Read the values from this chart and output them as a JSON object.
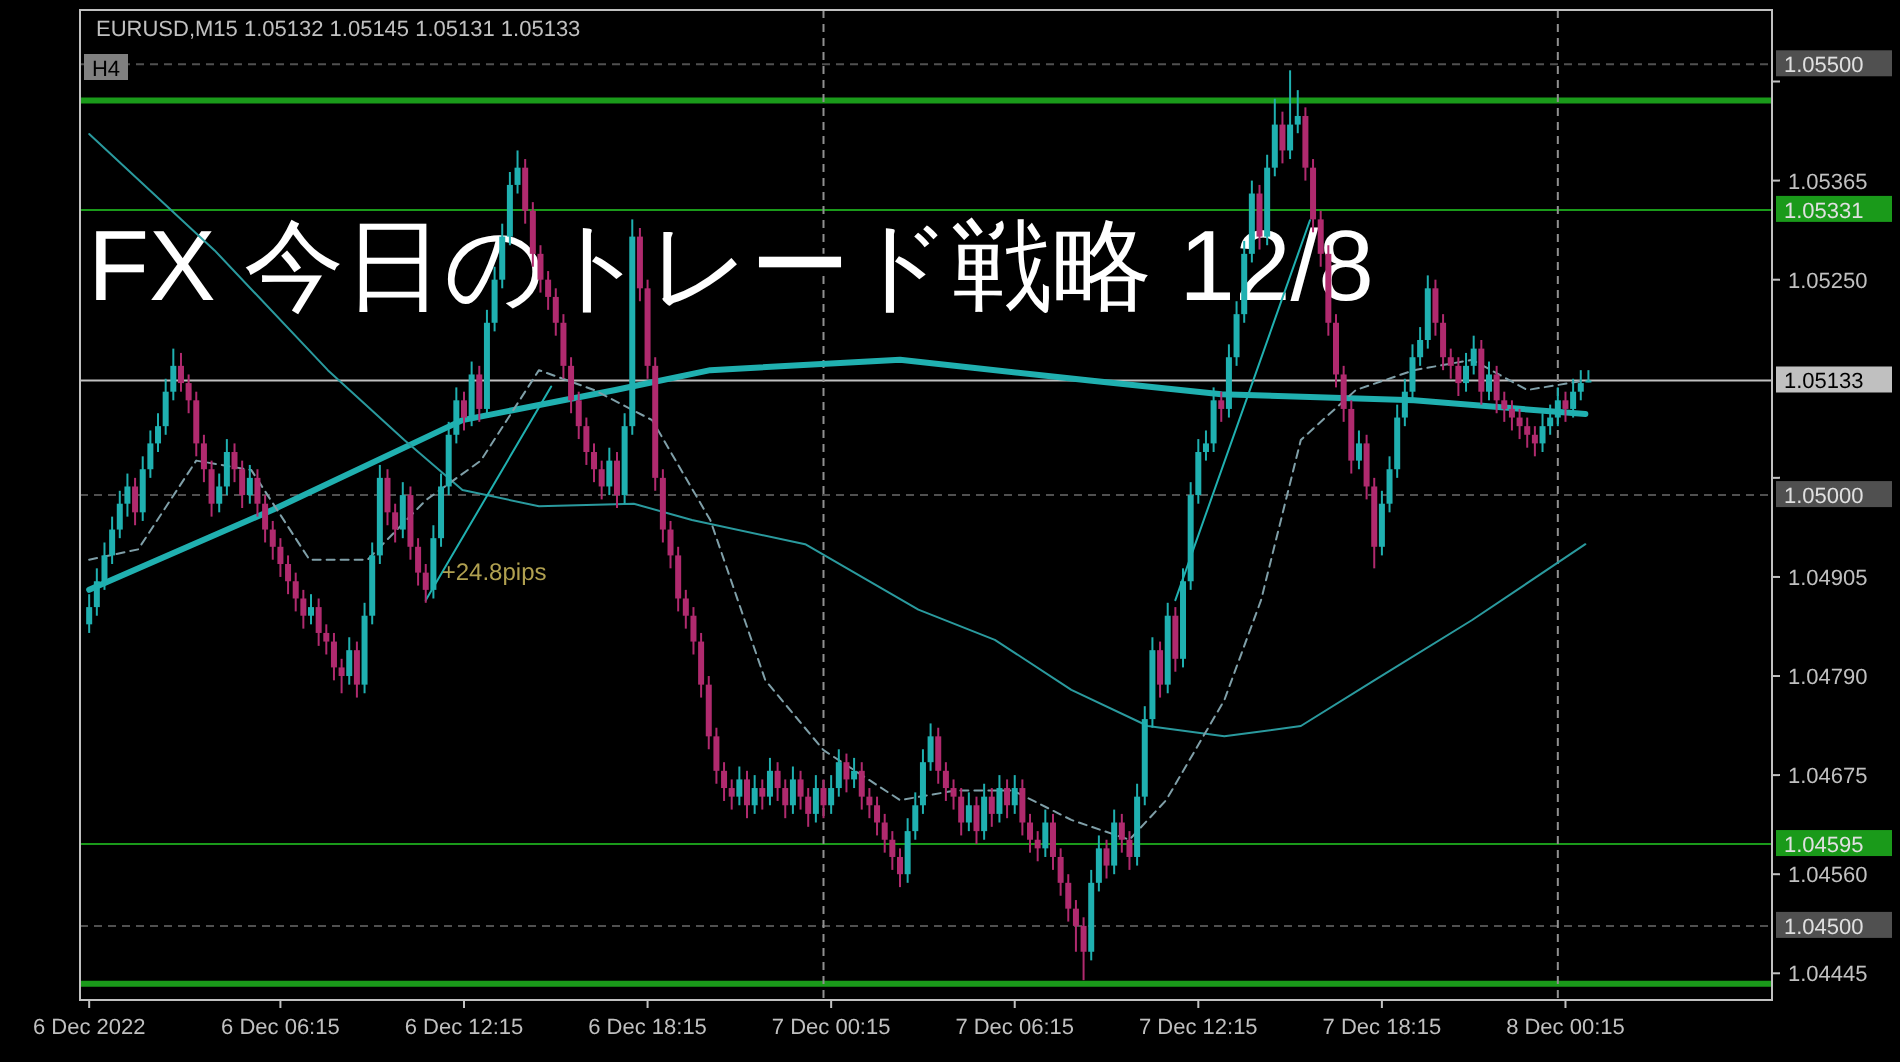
{
  "chart_data": {
    "type": "candlestick",
    "title": "FX 今日のトレード戦略 12/8",
    "subtitle": "EURUSD,M15 1.05132 1.05145 1.05131 1.05133",
    "annotations": [
      "H4",
      "+24.8pips"
    ],
    "xlim": [
      "2022-12-05T23:42",
      "2022-12-08T07:00"
    ],
    "ylim": [
      1.04414,
      1.05563
    ],
    "xticks": [
      {
        "value": "2022-12-06T00:00",
        "label": "6 Dec 2022"
      },
      {
        "value": "2022-12-06T06:15",
        "label": "6 Dec 06:15"
      },
      {
        "value": "2022-12-06T12:15",
        "label": "6 Dec 12:15"
      },
      {
        "value": "2022-12-06T18:15",
        "label": "6 Dec 18:15"
      },
      {
        "value": "2022-12-07T00:15",
        "label": "7 Dec 00:15"
      },
      {
        "value": "2022-12-07T06:15",
        "label": "7 Dec 06:15"
      },
      {
        "value": "2022-12-07T12:15",
        "label": "7 Dec 12:15"
      },
      {
        "value": "2022-12-07T18:15",
        "label": "7 Dec 18:15"
      },
      {
        "value": "2022-12-08T00:15",
        "label": "8 Dec 00:15"
      }
    ],
    "yticks": [
      {
        "value": 1.0548,
        "label": null
      },
      {
        "value": 1.05365,
        "label": "1.05365"
      },
      {
        "value": 1.0525,
        "label": "1.05250"
      },
      {
        "value": 1.0502,
        "label": null
      },
      {
        "value": 1.04905,
        "label": "1.04905"
      },
      {
        "value": 1.0479,
        "label": "1.04790"
      },
      {
        "value": 1.04675,
        "label": "1.04675"
      },
      {
        "value": 1.0456,
        "label": "1.04560"
      },
      {
        "value": 1.04445,
        "label": "1.04445"
      }
    ],
    "grid": false,
    "ref_lines": [
      {
        "axis": "y",
        "value": 1.055,
        "label": "1.05500",
        "color": "#505050",
        "line_style": "dashed"
      },
      {
        "axis": "y",
        "value": 1.05458,
        "label": null,
        "color": "#1a9a1a",
        "line_style": "solid"
      },
      {
        "axis": "y",
        "value": 1.05331,
        "label": "1.05331",
        "color": "#1a9a1a",
        "line_style": "solid"
      },
      {
        "axis": "y",
        "value": 1.05133,
        "label": "1.05133",
        "color": "#c0c0c0",
        "line_style": "solid"
      },
      {
        "axis": "y",
        "value": 1.05,
        "label": "1.05000",
        "color": "#505050",
        "line_style": "dashed"
      },
      {
        "axis": "y",
        "value": 1.04595,
        "label": "1.04595",
        "color": "#1a9a1a",
        "line_style": "solid"
      },
      {
        "axis": "y",
        "value": 1.045,
        "label": "1.04500",
        "color": "#505050",
        "line_style": "dashed"
      },
      {
        "axis": "y",
        "value": 1.04433,
        "label": null,
        "color": "#1a9a1a",
        "line_style": "solid"
      },
      {
        "axis": "x",
        "value": "2022-12-07T00:00",
        "label": null,
        "color": "#909090",
        "line_style": "dashed"
      },
      {
        "axis": "x",
        "value": "2022-12-08T00:00",
        "label": null,
        "color": "#909090",
        "line_style": "dashed"
      }
    ],
    "series": [
      {
        "type": "line",
        "color": "#20b0b0",
        "x": [
          "2022-12-06T00:00",
          "2022-12-06T06:00",
          "2022-12-06T12:12",
          "2022-12-06T17:12",
          "2022-12-06T20:18",
          "2022-12-07T02:30",
          "2022-12-07T08:42",
          "2022-12-07T13:00",
          "2022-12-07T19:18",
          "2022-12-08T00:54"
        ],
        "values": [
          1.0489,
          1.04983,
          1.05087,
          1.05122,
          1.05145,
          1.05157,
          1.05133,
          1.05117,
          1.0511,
          1.05094
        ]
      },
      {
        "type": "line",
        "color": "#2a9a9e",
        "x": [
          "2022-12-06T00:00",
          "2022-12-06T04:06",
          "2022-12-06T07:48",
          "2022-12-06T10:18",
          "2022-12-06T12:12",
          "2022-12-06T14:42",
          "2022-12-06T17:48",
          "2022-12-06T19:42",
          "2022-12-06T23:24",
          "2022-12-07T03:06",
          "2022-12-07T05:36",
          "2022-12-07T08:06",
          "2022-12-07T10:36",
          "2022-12-07T13:06",
          "2022-12-07T15:36",
          "2022-12-07T18:00",
          "2022-12-07T21:12",
          "2022-12-08T00:54"
        ],
        "values": [
          1.05419,
          1.05284,
          1.05145,
          1.05064,
          1.05006,
          1.04987,
          1.0499,
          1.04971,
          1.04943,
          1.04867,
          1.04832,
          1.04774,
          1.04732,
          1.0472,
          1.04732,
          1.04785,
          1.04855,
          1.04943
        ]
      },
      {
        "type": "line",
        "color": "#7f9fa8",
        "line_style": "dashed",
        "x": [
          "2022-12-06T00:00",
          "2022-12-06T01:36",
          "2022-12-06T03:30",
          "2022-12-06T05:18",
          "2022-12-06T07:12",
          "2022-12-06T09:06",
          "2022-12-06T11:00",
          "2022-12-06T12:48",
          "2022-12-06T14:42",
          "2022-12-06T16:30",
          "2022-12-06T18:24",
          "2022-12-06T20:18",
          "2022-12-06T22:06",
          "2022-12-07T00:00",
          "2022-12-07T02:30",
          "2022-12-07T04:18",
          "2022-12-07T06:12",
          "2022-12-07T08:06",
          "2022-12-07T10:00",
          "2022-12-07T11:12",
          "2022-12-07T13:06",
          "2022-12-07T14:18",
          "2022-12-07T15:36",
          "2022-12-07T17:24",
          "2022-12-07T19:18",
          "2022-12-07T21:12",
          "2022-12-07T23:00",
          "2022-12-08T00:54"
        ],
        "values": [
          1.04925,
          1.04937,
          1.0504,
          1.05029,
          1.04925,
          1.04925,
          1.04994,
          1.0504,
          1.05145,
          1.05122,
          1.05087,
          1.04971,
          1.04785,
          1.04704,
          1.04646,
          1.04657,
          1.04657,
          1.04623,
          1.046,
          1.04646,
          1.04762,
          1.04878,
          1.05064,
          1.05122,
          1.05145,
          1.05157,
          1.05122,
          1.05133
        ]
      },
      {
        "type": "line",
        "color": "#20b0b0",
        "x": [
          "2022-12-06T11:00",
          "2022-12-06T15:06"
        ],
        "values": [
          1.04878,
          1.05126
        ]
      },
      {
        "type": "line",
        "color": "#20b0b0",
        "x": [
          "2022-12-07T11:30",
          "2022-12-07T15:54"
        ],
        "values": [
          1.04878,
          1.05319
        ]
      }
    ],
    "x": [
      "2022-12-06T00:00",
      "2022-12-06T00:15",
      "2022-12-06T00:30",
      "2022-12-06T00:45",
      "2022-12-06T01:00",
      "2022-12-06T01:15",
      "2022-12-06T01:30",
      "2022-12-06T01:45",
      "2022-12-06T02:00",
      "2022-12-06T02:15",
      "2022-12-06T02:30",
      "2022-12-06T02:45",
      "2022-12-06T03:00",
      "2022-12-06T03:15",
      "2022-12-06T03:30",
      "2022-12-06T03:45",
      "2022-12-06T04:00",
      "2022-12-06T04:15",
      "2022-12-06T04:30",
      "2022-12-06T04:45",
      "2022-12-06T05:00",
      "2022-12-06T05:15",
      "2022-12-06T05:30",
      "2022-12-06T05:45",
      "2022-12-06T06:00",
      "2022-12-06T06:15",
      "2022-12-06T06:30",
      "2022-12-06T06:45",
      "2022-12-06T07:00",
      "2022-12-06T07:15",
      "2022-12-06T07:30",
      "2022-12-06T07:45",
      "2022-12-06T08:00",
      "2022-12-06T08:15",
      "2022-12-06T08:30",
      "2022-12-06T08:45",
      "2022-12-06T09:00",
      "2022-12-06T09:15",
      "2022-12-06T09:30",
      "2022-12-06T09:45",
      "2022-12-06T10:00",
      "2022-12-06T10:15",
      "2022-12-06T10:30",
      "2022-12-06T10:45",
      "2022-12-06T11:00",
      "2022-12-06T11:15",
      "2022-12-06T11:30",
      "2022-12-06T11:45",
      "2022-12-06T12:00",
      "2022-12-06T12:15",
      "2022-12-06T12:30",
      "2022-12-06T12:45",
      "2022-12-06T13:00",
      "2022-12-06T13:15",
      "2022-12-06T13:30",
      "2022-12-06T13:45",
      "2022-12-06T14:00",
      "2022-12-06T14:15",
      "2022-12-06T14:30",
      "2022-12-06T14:45",
      "2022-12-06T15:00",
      "2022-12-06T15:15",
      "2022-12-06T15:30",
      "2022-12-06T15:45",
      "2022-12-06T16:00",
      "2022-12-06T16:15",
      "2022-12-06T16:30",
      "2022-12-06T16:45",
      "2022-12-06T17:00",
      "2022-12-06T17:15",
      "2022-12-06T17:30",
      "2022-12-06T17:45",
      "2022-12-06T18:00",
      "2022-12-06T18:15",
      "2022-12-06T18:30",
      "2022-12-06T18:45",
      "2022-12-06T19:00",
      "2022-12-06T19:15",
      "2022-12-06T19:30",
      "2022-12-06T19:45",
      "2022-12-06T20:00",
      "2022-12-06T20:15",
      "2022-12-06T20:30",
      "2022-12-06T20:45",
      "2022-12-06T21:00",
      "2022-12-06T21:15",
      "2022-12-06T21:30",
      "2022-12-06T21:45",
      "2022-12-06T22:00",
      "2022-12-06T22:15",
      "2022-12-06T22:30",
      "2022-12-06T22:45",
      "2022-12-06T23:00",
      "2022-12-06T23:15",
      "2022-12-06T23:30",
      "2022-12-06T23:45",
      "2022-12-07T00:00",
      "2022-12-07T00:15",
      "2022-12-07T00:30",
      "2022-12-07T00:45",
      "2022-12-07T01:00",
      "2022-12-07T01:15",
      "2022-12-07T01:30",
      "2022-12-07T01:45",
      "2022-12-07T02:00",
      "2022-12-07T02:15",
      "2022-12-07T02:30",
      "2022-12-07T02:45",
      "2022-12-07T03:00",
      "2022-12-07T03:15",
      "2022-12-07T03:30",
      "2022-12-07T03:45",
      "2022-12-07T04:00",
      "2022-12-07T04:15",
      "2022-12-07T04:30",
      "2022-12-07T04:45",
      "2022-12-07T05:00",
      "2022-12-07T05:15",
      "2022-12-07T05:30",
      "2022-12-07T05:45",
      "2022-12-07T06:00",
      "2022-12-07T06:15",
      "2022-12-07T06:30",
      "2022-12-07T06:45",
      "2022-12-07T07:00",
      "2022-12-07T07:15",
      "2022-12-07T07:30",
      "2022-12-07T07:45",
      "2022-12-07T08:00",
      "2022-12-07T08:15",
      "2022-12-07T08:30",
      "2022-12-07T08:45",
      "2022-12-07T09:00",
      "2022-12-07T09:15",
      "2022-12-07T09:30",
      "2022-12-07T09:45",
      "2022-12-07T10:00",
      "2022-12-07T10:15",
      "2022-12-07T10:30",
      "2022-12-07T10:45",
      "2022-12-07T11:00",
      "2022-12-07T11:15",
      "2022-12-07T11:30",
      "2022-12-07T11:45",
      "2022-12-07T12:00",
      "2022-12-07T12:15",
      "2022-12-07T12:30",
      "2022-12-07T12:45",
      "2022-12-07T13:00",
      "2022-12-07T13:15",
      "2022-12-07T13:30",
      "2022-12-07T13:45",
      "2022-12-07T14:00",
      "2022-12-07T14:15",
      "2022-12-07T14:30",
      "2022-12-07T14:45",
      "2022-12-07T15:00",
      "2022-12-07T15:15",
      "2022-12-07T15:30",
      "2022-12-07T15:45",
      "2022-12-07T16:00",
      "2022-12-07T16:15",
      "2022-12-07T16:30",
      "2022-12-07T16:45",
      "2022-12-07T17:00",
      "2022-12-07T17:15",
      "2022-12-07T17:30",
      "2022-12-07T17:45",
      "2022-12-07T18:00",
      "2022-12-07T18:15",
      "2022-12-07T18:30",
      "2022-12-07T18:45",
      "2022-12-07T19:00",
      "2022-12-07T19:15",
      "2022-12-07T19:30",
      "2022-12-07T19:45",
      "2022-12-07T20:00",
      "2022-12-07T20:15",
      "2022-12-07T20:30",
      "2022-12-07T20:45",
      "2022-12-07T21:00",
      "2022-12-07T21:15",
      "2022-12-07T21:30",
      "2022-12-07T21:45",
      "2022-12-07T22:00",
      "2022-12-07T22:15",
      "2022-12-07T22:30",
      "2022-12-07T22:45",
      "2022-12-07T23:00",
      "2022-12-07T23:15",
      "2022-12-07T23:30",
      "2022-12-07T23:45",
      "2022-12-08T00:00",
      "2022-12-08T00:15",
      "2022-12-08T00:30",
      "2022-12-08T00:45",
      "2022-12-08T01:00"
    ],
    "ohlc": [
      [
        1.0485,
        1.04885,
        1.0484,
        1.0487
      ],
      [
        1.0487,
        1.04915,
        1.0486,
        1.049
      ],
      [
        1.049,
        1.04945,
        1.0489,
        1.0493
      ],
      [
        1.0493,
        1.04975,
        1.0492,
        1.0496
      ],
      [
        1.0496,
        1.05005,
        1.0495,
        1.0499
      ],
      [
        1.0499,
        1.05025,
        1.04975,
        1.0501
      ],
      [
        1.0501,
        1.0502,
        1.04965,
        1.0498
      ],
      [
        1.0498,
        1.05045,
        1.0497,
        1.0503
      ],
      [
        1.0503,
        1.05075,
        1.0502,
        1.0506
      ],
      [
        1.0506,
        1.05095,
        1.0505,
        1.0508
      ],
      [
        1.0508,
        1.05135,
        1.0507,
        1.0512
      ],
      [
        1.0512,
        1.0517,
        1.0511,
        1.0515
      ],
      [
        1.0515,
        1.05165,
        1.0512,
        1.0513
      ],
      [
        1.0513,
        1.0514,
        1.05095,
        1.0511
      ],
      [
        1.0511,
        1.0512,
        1.05045,
        1.0506
      ],
      [
        1.0506,
        1.0507,
        1.05015,
        1.0503
      ],
      [
        1.0503,
        1.0504,
        1.04975,
        1.0499
      ],
      [
        1.0499,
        1.05025,
        1.0498,
        1.0501
      ],
      [
        1.0501,
        1.05065,
        1.05,
        1.0505
      ],
      [
        1.0505,
        1.0506,
        1.05015,
        1.0503
      ],
      [
        1.0503,
        1.0504,
        1.04985,
        1.05
      ],
      [
        1.05,
        1.05035,
        1.0499,
        1.0502
      ],
      [
        1.0502,
        1.0503,
        1.04975,
        1.0499
      ],
      [
        1.0499,
        1.05,
        1.04945,
        1.0496
      ],
      [
        1.0496,
        1.0497,
        1.04925,
        1.0494
      ],
      [
        1.0494,
        1.0495,
        1.04905,
        1.0492
      ],
      [
        1.0492,
        1.0493,
        1.04885,
        1.049
      ],
      [
        1.049,
        1.0491,
        1.04865,
        1.0488
      ],
      [
        1.0488,
        1.0489,
        1.04845,
        1.0486
      ],
      [
        1.0486,
        1.04885,
        1.0485,
        1.0487
      ],
      [
        1.0487,
        1.0488,
        1.04825,
        1.0484
      ],
      [
        1.0484,
        1.0485,
        1.04815,
        1.0483
      ],
      [
        1.0483,
        1.0484,
        1.04785,
        1.048
      ],
      [
        1.048,
        1.0481,
        1.0477,
        1.0479
      ],
      [
        1.0479,
        1.04835,
        1.0478,
        1.0482
      ],
      [
        1.0482,
        1.0483,
        1.04765,
        1.0478
      ],
      [
        1.0478,
        1.04875,
        1.0477,
        1.0486
      ],
      [
        1.0486,
        1.04945,
        1.0485,
        1.0493
      ],
      [
        1.0493,
        1.05035,
        1.0492,
        1.0502
      ],
      [
        1.0502,
        1.0503,
        1.04965,
        1.0498
      ],
      [
        1.0498,
        1.0499,
        1.04945,
        1.0496
      ],
      [
        1.0496,
        1.05015,
        1.0495,
        1.05
      ],
      [
        1.05,
        1.0501,
        1.04925,
        1.0494
      ],
      [
        1.0494,
        1.0495,
        1.04895,
        1.0491
      ],
      [
        1.0491,
        1.0492,
        1.04875,
        1.0489
      ],
      [
        1.0489,
        1.04965,
        1.0488,
        1.0495
      ],
      [
        1.0495,
        1.05025,
        1.0494,
        1.0501
      ],
      [
        1.0501,
        1.05085,
        1.05,
        1.0507
      ],
      [
        1.0507,
        1.05125,
        1.0506,
        1.0511
      ],
      [
        1.0511,
        1.0512,
        1.05075,
        1.0509
      ],
      [
        1.0509,
        1.05155,
        1.0508,
        1.0514
      ],
      [
        1.0514,
        1.0515,
        1.05085,
        1.051
      ],
      [
        1.051,
        1.05215,
        1.0509,
        1.052
      ],
      [
        1.052,
        1.05265,
        1.0519,
        1.0525
      ],
      [
        1.0525,
        1.05315,
        1.0524,
        1.053
      ],
      [
        1.053,
        1.05375,
        1.0529,
        1.0536
      ],
      [
        1.0536,
        1.054,
        1.0535,
        1.0538
      ],
      [
        1.0538,
        1.0539,
        1.05315,
        1.0533
      ],
      [
        1.0533,
        1.0534,
        1.05265,
        1.0528
      ],
      [
        1.0528,
        1.0529,
        1.05235,
        1.0525
      ],
      [
        1.0525,
        1.0526,
        1.05215,
        1.0523
      ],
      [
        1.0523,
        1.0524,
        1.05185,
        1.052
      ],
      [
        1.052,
        1.0521,
        1.05135,
        1.0515
      ],
      [
        1.0515,
        1.0516,
        1.05095,
        1.0511
      ],
      [
        1.0511,
        1.0512,
        1.05065,
        1.0508
      ],
      [
        1.0508,
        1.0509,
        1.05035,
        1.0505
      ],
      [
        1.0505,
        1.0506,
        1.05015,
        1.0503
      ],
      [
        1.0503,
        1.0504,
        1.04995,
        1.0501
      ],
      [
        1.0501,
        1.05055,
        1.05,
        1.0504
      ],
      [
        1.0504,
        1.0505,
        1.04985,
        1.05
      ],
      [
        1.05,
        1.05095,
        1.0499,
        1.0508
      ],
      [
        1.0508,
        1.0532,
        1.0507,
        1.053
      ],
      [
        1.053,
        1.0531,
        1.05225,
        1.0524
      ],
      [
        1.0524,
        1.0525,
        1.05135,
        1.0515
      ],
      [
        1.0515,
        1.0516,
        1.05005,
        1.0502
      ],
      [
        1.0502,
        1.0503,
        1.04945,
        1.0496
      ],
      [
        1.0496,
        1.0497,
        1.04915,
        1.0493
      ],
      [
        1.0493,
        1.0494,
        1.04865,
        1.0488
      ],
      [
        1.0488,
        1.0489,
        1.04845,
        1.0486
      ],
      [
        1.0486,
        1.0487,
        1.04815,
        1.0483
      ],
      [
        1.0483,
        1.0484,
        1.04765,
        1.0478
      ],
      [
        1.0478,
        1.0479,
        1.04705,
        1.0472
      ],
      [
        1.0472,
        1.0473,
        1.04665,
        1.0468
      ],
      [
        1.0468,
        1.0469,
        1.04645,
        1.0466
      ],
      [
        1.0466,
        1.0467,
        1.04635,
        1.0465
      ],
      [
        1.0465,
        1.04685,
        1.0464,
        1.0467
      ],
      [
        1.0467,
        1.0468,
        1.04625,
        1.0464
      ],
      [
        1.0464,
        1.04675,
        1.0463,
        1.0466
      ],
      [
        1.0466,
        1.0467,
        1.04635,
        1.0465
      ],
      [
        1.0465,
        1.04695,
        1.0464,
        1.0468
      ],
      [
        1.0468,
        1.0469,
        1.04645,
        1.0466
      ],
      [
        1.0466,
        1.0467,
        1.04625,
        1.0464
      ],
      [
        1.0464,
        1.04685,
        1.0463,
        1.0467
      ],
      [
        1.0467,
        1.0468,
        1.04635,
        1.0465
      ],
      [
        1.0465,
        1.0466,
        1.04615,
        1.0463
      ],
      [
        1.0463,
        1.04675,
        1.0462,
        1.0466
      ],
      [
        1.0466,
        1.0467,
        1.04625,
        1.0464
      ],
      [
        1.0464,
        1.04675,
        1.0463,
        1.0466
      ],
      [
        1.0466,
        1.04705,
        1.0465,
        1.0469
      ],
      [
        1.0469,
        1.047,
        1.04655,
        1.0467
      ],
      [
        1.0467,
        1.04695,
        1.0466,
        1.0468
      ],
      [
        1.0468,
        1.0469,
        1.04635,
        1.0465
      ],
      [
        1.0465,
        1.0466,
        1.04625,
        1.0464
      ],
      [
        1.0464,
        1.0465,
        1.04605,
        1.0462
      ],
      [
        1.0462,
        1.0463,
        1.04585,
        1.046
      ],
      [
        1.046,
        1.0461,
        1.04565,
        1.0458
      ],
      [
        1.0458,
        1.0459,
        1.04545,
        1.0456
      ],
      [
        1.0456,
        1.04625,
        1.0455,
        1.0461
      ],
      [
        1.0461,
        1.04655,
        1.046,
        1.0464
      ],
      [
        1.0464,
        1.04705,
        1.0463,
        1.0469
      ],
      [
        1.0469,
        1.04735,
        1.0468,
        1.0472
      ],
      [
        1.0472,
        1.0473,
        1.04665,
        1.0468
      ],
      [
        1.0468,
        1.0469,
        1.04645,
        1.0466
      ],
      [
        1.0466,
        1.0467,
        1.04635,
        1.0465
      ],
      [
        1.0465,
        1.0466,
        1.04605,
        1.0462
      ],
      [
        1.0462,
        1.04655,
        1.0461,
        1.0464
      ],
      [
        1.0464,
        1.0465,
        1.04595,
        1.0461
      ],
      [
        1.0461,
        1.04665,
        1.046,
        1.0465
      ],
      [
        1.0465,
        1.0466,
        1.04615,
        1.0463
      ],
      [
        1.0463,
        1.04675,
        1.0462,
        1.0466
      ],
      [
        1.0466,
        1.0467,
        1.04625,
        1.0464
      ],
      [
        1.0464,
        1.04675,
        1.0463,
        1.0466
      ],
      [
        1.0466,
        1.0467,
        1.04605,
        1.0462
      ],
      [
        1.0462,
        1.0463,
        1.04585,
        1.046
      ],
      [
        1.046,
        1.0461,
        1.04575,
        1.0459
      ],
      [
        1.0459,
        1.04635,
        1.0458,
        1.0462
      ],
      [
        1.0462,
        1.0463,
        1.04565,
        1.0458
      ],
      [
        1.0458,
        1.0459,
        1.04535,
        1.0455
      ],
      [
        1.0455,
        1.0456,
        1.04505,
        1.0452
      ],
      [
        1.0452,
        1.0453,
        1.0447,
        1.045
      ],
      [
        1.045,
        1.0451,
        1.04437,
        1.0447
      ],
      [
        1.0447,
        1.04565,
        1.0446,
        1.0455
      ],
      [
        1.0455,
        1.04605,
        1.0454,
        1.0459
      ],
      [
        1.0459,
        1.046,
        1.04555,
        1.0457
      ],
      [
        1.0457,
        1.04635,
        1.0456,
        1.0462
      ],
      [
        1.0462,
        1.0463,
        1.04585,
        1.046
      ],
      [
        1.046,
        1.0461,
        1.04565,
        1.0458
      ],
      [
        1.0458,
        1.04665,
        1.0457,
        1.0465
      ],
      [
        1.0465,
        1.04755,
        1.0464,
        1.0474
      ],
      [
        1.0474,
        1.04835,
        1.0473,
        1.0482
      ],
      [
        1.0482,
        1.0483,
        1.04765,
        1.0478
      ],
      [
        1.0478,
        1.04875,
        1.0477,
        1.0486
      ],
      [
        1.0486,
        1.0487,
        1.04795,
        1.0481
      ],
      [
        1.0481,
        1.04915,
        1.048,
        1.049
      ],
      [
        1.049,
        1.05015,
        1.0489,
        1.05
      ],
      [
        1.05,
        1.05065,
        1.0499,
        1.0505
      ],
      [
        1.0505,
        1.05075,
        1.0504,
        1.0506
      ],
      [
        1.0506,
        1.05125,
        1.0505,
        1.0511
      ],
      [
        1.0511,
        1.0512,
        1.05085,
        1.051
      ],
      [
        1.051,
        1.05175,
        1.0509,
        1.0516
      ],
      [
        1.0516,
        1.05225,
        1.0515,
        1.0521
      ],
      [
        1.0521,
        1.05295,
        1.052,
        1.0528
      ],
      [
        1.0528,
        1.05365,
        1.0527,
        1.0535
      ],
      [
        1.0535,
        1.0536,
        1.05285,
        1.053
      ],
      [
        1.053,
        1.05395,
        1.0529,
        1.0538
      ],
      [
        1.0538,
        1.0546,
        1.0537,
        1.0543
      ],
      [
        1.0543,
        1.05445,
        1.05385,
        1.054
      ],
      [
        1.054,
        1.05493,
        1.0539,
        1.0543
      ],
      [
        1.0543,
        1.0547,
        1.0542,
        1.0544
      ],
      [
        1.0544,
        1.0545,
        1.05365,
        1.0538
      ],
      [
        1.0538,
        1.0539,
        1.05305,
        1.0532
      ],
      [
        1.0532,
        1.0533,
        1.05265,
        1.0528
      ],
      [
        1.0528,
        1.0529,
        1.05185,
        1.052
      ],
      [
        1.052,
        1.0521,
        1.05125,
        1.0514
      ],
      [
        1.0514,
        1.0515,
        1.05085,
        1.051
      ],
      [
        1.051,
        1.0511,
        1.05025,
        1.0504
      ],
      [
        1.0504,
        1.05075,
        1.0503,
        1.0506
      ],
      [
        1.0506,
        1.0507,
        1.04995,
        1.0501
      ],
      [
        1.0501,
        1.0502,
        1.04915,
        1.0494
      ],
      [
        1.0494,
        1.05005,
        1.0493,
        1.0499
      ],
      [
        1.0499,
        1.05045,
        1.0498,
        1.0503
      ],
      [
        1.0503,
        1.05105,
        1.0502,
        1.0509
      ],
      [
        1.0509,
        1.05135,
        1.0508,
        1.0512
      ],
      [
        1.0512,
        1.05175,
        1.0511,
        1.0516
      ],
      [
        1.0516,
        1.05195,
        1.0515,
        1.0518
      ],
      [
        1.0518,
        1.05255,
        1.0517,
        1.0524
      ],
      [
        1.0524,
        1.0525,
        1.05185,
        1.052
      ],
      [
        1.052,
        1.0521,
        1.05145,
        1.0516
      ],
      [
        1.0516,
        1.0517,
        1.05135,
        1.0515
      ],
      [
        1.0515,
        1.0516,
        1.05115,
        1.0513
      ],
      [
        1.0513,
        1.05165,
        1.0512,
        1.0515
      ],
      [
        1.0515,
        1.05185,
        1.0514,
        1.0517
      ],
      [
        1.0517,
        1.0518,
        1.05105,
        1.0512
      ],
      [
        1.0512,
        1.05155,
        1.0511,
        1.0514
      ],
      [
        1.0514,
        1.0515,
        1.05095,
        1.0511
      ],
      [
        1.0511,
        1.0512,
        1.05085,
        1.051
      ],
      [
        1.051,
        1.0511,
        1.05075,
        1.0509
      ],
      [
        1.0509,
        1.051,
        1.05065,
        1.0508
      ],
      [
        1.0508,
        1.0509,
        1.05055,
        1.0507
      ],
      [
        1.0507,
        1.0508,
        1.05045,
        1.0506
      ],
      [
        1.0506,
        1.05095,
        1.0505,
        1.0508
      ],
      [
        1.0508,
        1.05105,
        1.0507,
        1.0509
      ],
      [
        1.0509,
        1.05125,
        1.0508,
        1.0511
      ],
      [
        1.0511,
        1.0512,
        1.05085,
        1.051
      ],
      [
        1.051,
        1.05135,
        1.0509,
        1.0512
      ],
      [
        1.0512,
        1.05145,
        1.0511,
        1.0513
      ],
      [
        1.05132,
        1.05145,
        1.05131,
        1.05133
      ]
    ]
  }
}
